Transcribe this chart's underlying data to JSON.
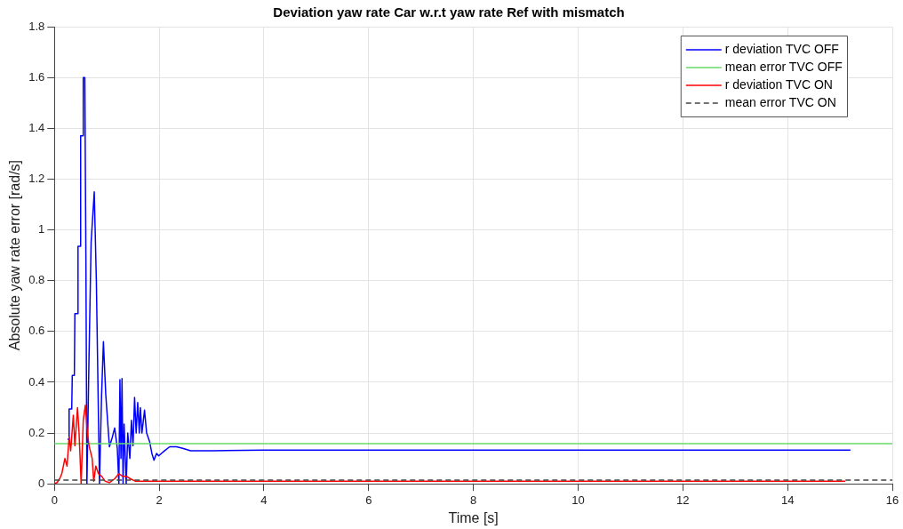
{
  "chart_data": {
    "type": "line",
    "title": "Deviation yaw rate Car w.r.t yaw rate Ref with mismatch",
    "xlabel": "Time [s]",
    "ylabel": "Absolute yaw rate error [rad/s]",
    "xlim": [
      0,
      16
    ],
    "xticks": [
      0,
      2,
      4,
      6,
      8,
      10,
      12,
      14,
      16
    ],
    "ylim": [
      0,
      1.8
    ],
    "yticks": [
      0,
      0.2,
      0.4,
      0.6,
      0.8,
      1,
      1.2,
      1.4,
      1.6,
      1.8
    ],
    "grid": true,
    "legend": "top right",
    "marker": "none",
    "series": [
      {
        "name": "r deviation TVC OFF",
        "color": "#0000ff",
        "x": [
          0.25,
          0.27,
          0.28,
          0.33,
          0.34,
          0.38,
          0.39,
          0.44,
          0.45,
          0.49,
          0.5,
          0.54,
          0.55,
          0.58,
          0.6,
          0.62,
          0.66,
          0.7,
          0.76,
          0.8,
          0.86,
          0.9,
          0.935,
          0.98,
          1.05,
          1.1,
          1.15,
          1.2,
          1.23,
          1.25,
          1.27,
          1.29,
          1.31,
          1.33,
          1.37,
          1.4,
          1.44,
          1.47,
          1.5,
          1.53,
          1.56,
          1.59,
          1.62,
          1.64,
          1.67,
          1.72,
          1.76,
          1.82,
          1.86,
          1.9,
          1.95,
          1.99,
          2.1,
          2.2,
          2.33,
          2.45,
          2.6,
          3,
          4,
          6,
          8,
          10,
          12,
          14,
          15.2
        ],
        "values": [
          0.176,
          0.176,
          0.295,
          0.295,
          0.427,
          0.427,
          0.67,
          0.67,
          0.935,
          0.935,
          1.37,
          1.37,
          1.6,
          1.6,
          0.9,
          0,
          0.5,
          0.95,
          1.15,
          0.8,
          0,
          0.35,
          0.56,
          0.35,
          0.146,
          0.18,
          0.22,
          0.14,
          0,
          0.41,
          0.1,
          0.415,
          0,
          0.235,
          0,
          0.2,
          0.1,
          0.25,
          0.15,
          0.34,
          0.2,
          0.32,
          0.2,
          0.3,
          0.2,
          0.29,
          0.2,
          0.164,
          0.12,
          0.093,
          0.12,
          0.11,
          0.13,
          0.146,
          0.146,
          0.14,
          0.13,
          0.13,
          0.133,
          0.133,
          0.133,
          0.133,
          0.133,
          0.133,
          0.133
        ]
      },
      {
        "name": "mean error TVC OFF",
        "color": "#66dd66",
        "x": [
          0,
          16
        ],
        "values": [
          0.158,
          0.158
        ]
      },
      {
        "name": "r deviation TVC ON",
        "color": "#ff0000",
        "x": [
          0,
          0.05,
          0.1,
          0.14,
          0.2,
          0.24,
          0.28,
          0.31,
          0.36,
          0.39,
          0.44,
          0.47,
          0.51,
          0.55,
          0.59,
          0.63,
          0.66,
          0.72,
          0.75,
          0.79,
          0.84,
          0.9,
          0.97,
          1.05,
          1.15,
          1.23,
          1.3,
          1.37,
          1.45,
          1.55,
          2,
          4,
          8,
          12,
          15.1
        ],
        "values": [
          0,
          0.005,
          0.02,
          0.04,
          0.1,
          0.07,
          0.185,
          0.13,
          0.27,
          0.15,
          0.3,
          0.2,
          0,
          0.25,
          0.31,
          0.2,
          0.15,
          0.1,
          0.01,
          0.07,
          0.04,
          0.03,
          0.01,
          0.005,
          0.02,
          0.04,
          0.03,
          0.03,
          0.02,
          0.01,
          0.01,
          0.01,
          0.01,
          0.01,
          0.01
        ]
      },
      {
        "name": "mean error TVC ON",
        "color": "#444444",
        "line_style": "dashed",
        "x": [
          0,
          16
        ],
        "values": [
          0.015,
          0.015
        ]
      }
    ]
  }
}
